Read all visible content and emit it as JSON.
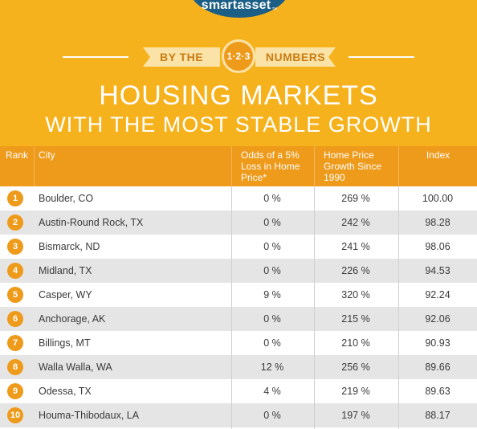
{
  "brand": {
    "name": "smartasset",
    "mark": "™"
  },
  "header": {
    "ribbon_left": "BY THE",
    "badge": "1·2·3",
    "ribbon_right": "NUMBERS",
    "title_line1": "Housing Markets",
    "title_line2": "With the Most Stable Growth"
  },
  "colors": {
    "background": "#f6b21c",
    "accent_orange": "#ee9a1a",
    "logo_blue": "#1c5f86",
    "ribbon": "#fbe3a8",
    "row_alt": "#e5e5e5"
  },
  "table": {
    "columns": {
      "rank": "Rank",
      "city": "City",
      "odds": "Odds of a 5% Loss in Home Price*",
      "growth": "Home Price Growth Since 1990",
      "index": "Index"
    },
    "rows": [
      {
        "rank": "1",
        "city": "Boulder, CO",
        "odds": "0 %",
        "growth": "269 %",
        "index": "100.00"
      },
      {
        "rank": "2",
        "city": "Austin-Round Rock, TX",
        "odds": "0 %",
        "growth": "242 %",
        "index": "98.28"
      },
      {
        "rank": "3",
        "city": "Bismarck, ND",
        "odds": "0 %",
        "growth": "241 %",
        "index": "98.06"
      },
      {
        "rank": "4",
        "city": "Midland, TX",
        "odds": "0 %",
        "growth": "226 %",
        "index": "94.53"
      },
      {
        "rank": "5",
        "city": "Casper, WY",
        "odds": "9 %",
        "growth": "320 %",
        "index": "92.24"
      },
      {
        "rank": "6",
        "city": "Anchorage, AK",
        "odds": "0 %",
        "growth": "215 %",
        "index": "92.06"
      },
      {
        "rank": "7",
        "city": "Billings, MT",
        "odds": "0 %",
        "growth": "210 %",
        "index": "90.93"
      },
      {
        "rank": "8",
        "city": "Walla Walla, WA",
        "odds": "12 %",
        "growth": "256 %",
        "index": "89.66"
      },
      {
        "rank": "9",
        "city": "Odessa, TX",
        "odds": "4 %",
        "growth": "219 %",
        "index": "89.63"
      },
      {
        "rank": "10",
        "city": "Houma-Thibodaux, LA",
        "odds": "0 %",
        "growth": "197 %",
        "index": "88.17"
      }
    ]
  }
}
